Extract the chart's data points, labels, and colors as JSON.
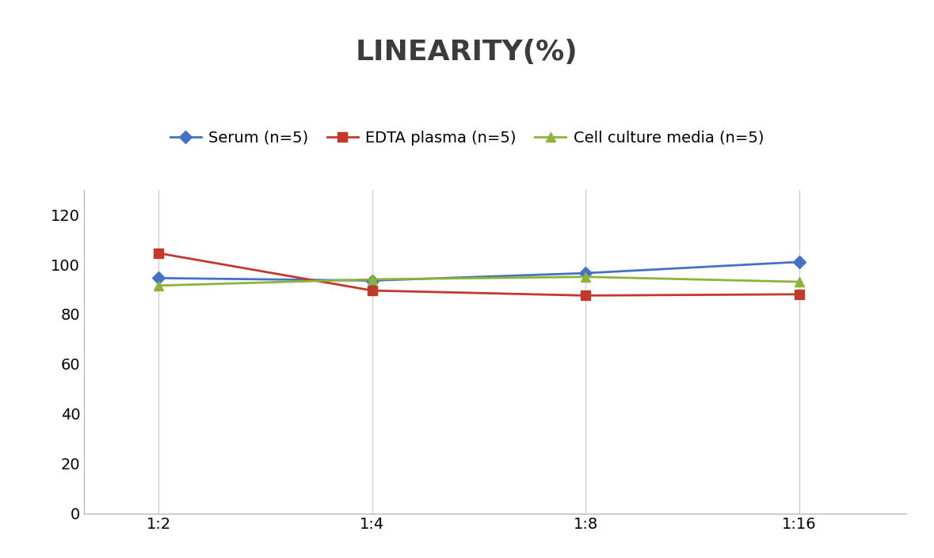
{
  "title": "LINEARITY(%)",
  "x_labels": [
    "1:2",
    "1:4",
    "1:8",
    "1:16"
  ],
  "x_positions": [
    0,
    1,
    2,
    3
  ],
  "series": [
    {
      "label": "Serum (n=5)",
      "values": [
        94.5,
        93.5,
        96.5,
        101.0
      ],
      "color": "#4472C4",
      "marker": "D",
      "marker_size": 8,
      "linewidth": 2.0
    },
    {
      "label": "EDTA plasma (n=5)",
      "values": [
        104.5,
        89.5,
        87.5,
        88.0
      ],
      "color": "#C0392B",
      "marker": "s",
      "marker_size": 8,
      "linewidth": 2.0
    },
    {
      "label": "Cell culture media (n=5)",
      "values": [
        91.5,
        94.0,
        95.0,
        93.0
      ],
      "color": "#8DB33A",
      "marker": "^",
      "marker_size": 9,
      "linewidth": 2.0
    }
  ],
  "ylim": [
    0,
    130
  ],
  "yticks": [
    0,
    20,
    40,
    60,
    80,
    100,
    120
  ],
  "background_color": "#ffffff",
  "grid_color": "#d0d0d0",
  "title_fontsize": 26,
  "tick_fontsize": 14,
  "legend_fontsize": 14
}
